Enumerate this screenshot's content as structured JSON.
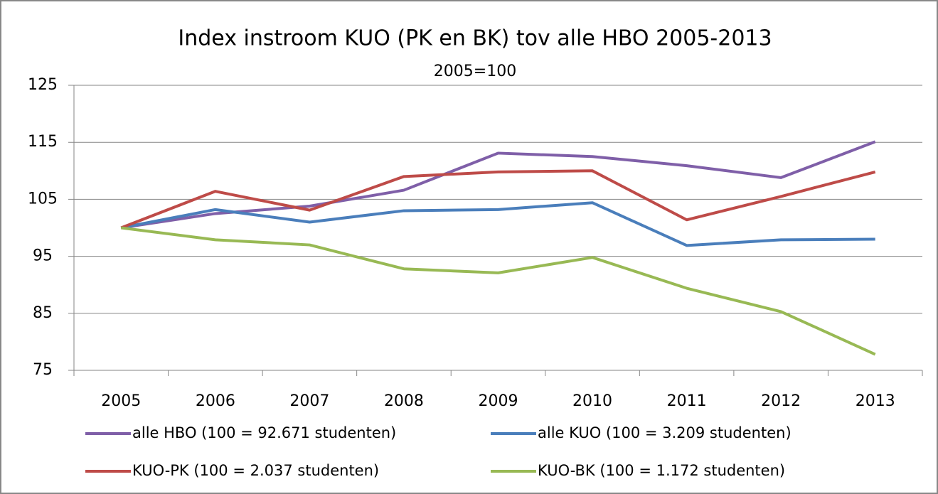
{
  "chart_data": {
    "type": "line",
    "title": "Index instroom KUO (PK en BK) tov alle HBO 2005-2013",
    "subtitle": "2005=100",
    "categories": [
      "2005",
      "2006",
      "2007",
      "2008",
      "2009",
      "2010",
      "2011",
      "2012",
      "2013"
    ],
    "series": [
      {
        "name": "alle HBO (100 = 92.671 studenten)",
        "color": "#7f5fa8",
        "values": [
          100,
          102.5,
          103.8,
          106.6,
          113.1,
          112.5,
          110.9,
          108.8,
          115.1
        ]
      },
      {
        "name": "alle KUO (100 = 3.209 studenten)",
        "color": "#4a7ebb",
        "values": [
          100,
          103.2,
          101,
          103,
          103.2,
          104.4,
          96.9,
          97.9,
          98
        ]
      },
      {
        "name": "KUO-PK (100 = 2.037 studenten)",
        "color": "#be4b48",
        "values": [
          100,
          106.4,
          103.1,
          109,
          109.8,
          110,
          101.4,
          105.5,
          109.8
        ]
      },
      {
        "name": "KUO-BK (100 = 1.172 studenten)",
        "color": "#98b954",
        "values": [
          100,
          97.9,
          97,
          92.8,
          92.1,
          94.8,
          89.4,
          85.3,
          77.8
        ]
      }
    ],
    "ylim": [
      75,
      125
    ],
    "yticks": [
      75,
      85,
      95,
      105,
      115,
      125
    ],
    "grid": true
  }
}
